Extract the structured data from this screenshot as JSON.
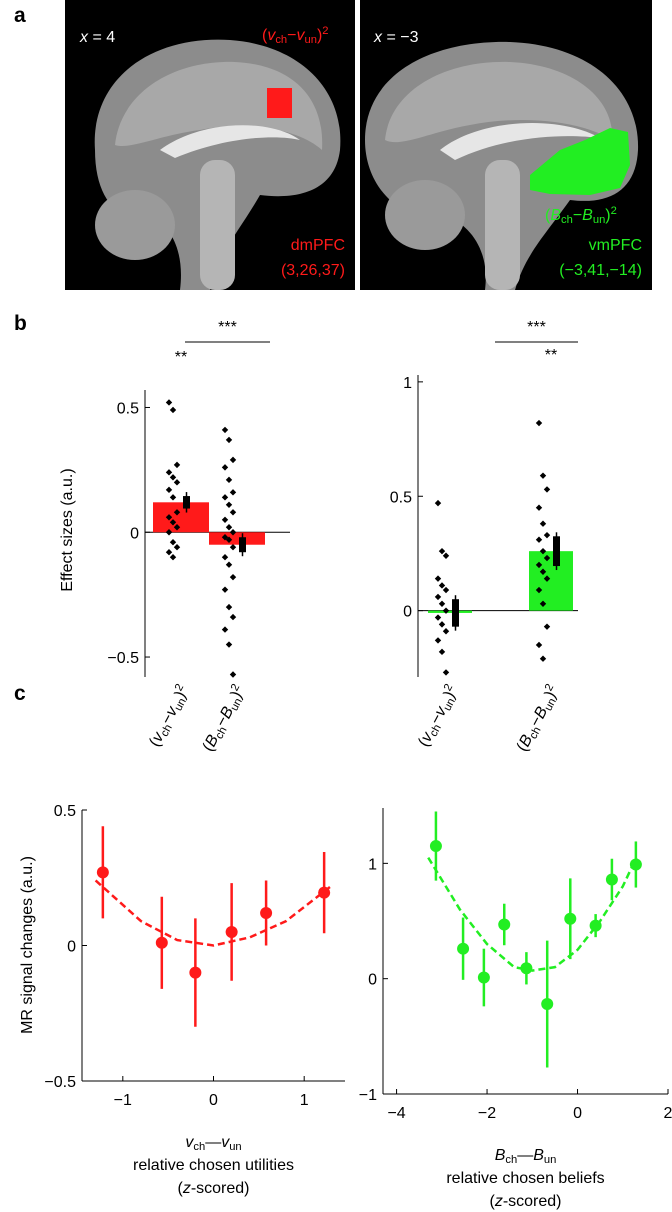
{
  "panel_labels": [
    "a",
    "b",
    "c"
  ],
  "brain_panels": [
    {
      "slice": [
        [
          "x",
          "italic"
        ],
        [
          " = 4",
          "normal"
        ]
      ],
      "contrast": [
        [
          "(",
          "normal"
        ],
        [
          "v",
          "italic"
        ],
        [
          "ch",
          "sub"
        ],
        [
          "−",
          "normal"
        ],
        [
          "v",
          "italic"
        ],
        [
          "un",
          "sub"
        ],
        [
          ")",
          "normal"
        ],
        [
          "2",
          "sup"
        ]
      ],
      "color": "#ff1a1a",
      "region": "dmPFC",
      "coordinates": "(3,26,37)"
    },
    {
      "slice": [
        [
          "x",
          "italic"
        ],
        [
          " = −3",
          "normal"
        ]
      ],
      "contrast": [
        [
          "(",
          "normal"
        ],
        [
          "B",
          "italic"
        ],
        [
          "ch",
          "sub"
        ],
        [
          "−",
          "normal"
        ],
        [
          "B",
          "italic"
        ],
        [
          "un",
          "sub"
        ],
        [
          ")",
          "normal"
        ],
        [
          "2",
          "sup"
        ]
      ],
      "color": "#22ee22",
      "region": "vmPFC",
      "coordinates": "(−3,41,−14)"
    }
  ],
  "chart_data": [
    {
      "type": "bar",
      "y_label": "Effect sizes (a.u.)",
      "categories": [
        [
          [
            "(",
            "normal"
          ],
          [
            "v",
            "italic"
          ],
          [
            "ch",
            "sub"
          ],
          [
            "−",
            "normal"
          ],
          [
            "v",
            "italic"
          ],
          [
            "un",
            "sub"
          ],
          [
            ")",
            "normal"
          ],
          [
            "2",
            "sup"
          ]
        ],
        [
          [
            "(",
            "normal"
          ],
          [
            "B",
            "italic"
          ],
          [
            "ch",
            "sub"
          ],
          [
            "−",
            "normal"
          ],
          [
            "B",
            "italic"
          ],
          [
            "un",
            "sub"
          ],
          [
            ")",
            "normal"
          ],
          [
            "2",
            "sup"
          ]
        ]
      ],
      "values": [
        0.12,
        -0.05
      ],
      "errors": [
        0.025,
        0.03
      ],
      "color": "#ff1a1a",
      "error_color": "#000000",
      "points": [
        [
          0.52,
          0.49,
          0.27,
          0.24,
          0.22,
          0.2,
          0.17,
          0.14,
          0.08,
          0.06,
          0.04,
          0.02,
          0,
          -0.04,
          -0.06,
          -0.08,
          -0.1
        ],
        [
          0.41,
          0.37,
          0.29,
          0.26,
          0.21,
          0.16,
          0.14,
          0.11,
          0.08,
          0.05,
          0.02,
          0,
          -0.02,
          -0.03,
          -0.06,
          -0.1,
          -0.13,
          -0.18,
          -0.23,
          -0.3,
          -0.34,
          -0.39,
          -0.45,
          -0.57
        ]
      ],
      "point_color": "#000000",
      "significance": [
        "**",
        null
      ],
      "comparison": "***",
      "ylim": [
        -0.58,
        0.57
      ],
      "yticks": [
        0.5,
        0,
        {
          "value": -0.5,
          "label": "−0.5"
        }
      ]
    },
    {
      "type": "bar",
      "categories": [
        [
          [
            "(",
            "normal"
          ],
          [
            "v",
            "italic"
          ],
          [
            "ch",
            "sub"
          ],
          [
            "−",
            "normal"
          ],
          [
            "v",
            "italic"
          ],
          [
            "un",
            "sub"
          ],
          [
            ")",
            "normal"
          ],
          [
            "2",
            "sup"
          ]
        ],
        [
          [
            "(",
            "normal"
          ],
          [
            "B",
            "italic"
          ],
          [
            "ch",
            "sub"
          ],
          [
            "−",
            "normal"
          ],
          [
            "B",
            "italic"
          ],
          [
            "un",
            "sub"
          ],
          [
            ")",
            "normal"
          ],
          [
            "2",
            "sup"
          ]
        ]
      ],
      "values": [
        -0.01,
        0.26
      ],
      "errors": [
        0.06,
        0.065
      ],
      "color": "#22ee22",
      "error_color": "#000000",
      "points": [
        [
          0.47,
          0.26,
          0.24,
          0.14,
          0.11,
          0.09,
          0.06,
          0.03,
          0,
          -0.03,
          -0.06,
          -0.09,
          -0.13,
          -0.18,
          -0.27
        ],
        [
          0.82,
          0.59,
          0.53,
          0.45,
          0.38,
          0.33,
          0.31,
          0.26,
          0.23,
          0.2,
          0.17,
          0.14,
          0.09,
          0.03,
          -0.07,
          -0.15,
          -0.21
        ]
      ],
      "point_color": "#000000",
      "significance": [
        null,
        "**"
      ],
      "comparison": "***",
      "ylim": [
        -0.29,
        1.03
      ],
      "yticks": [
        1,
        0.5,
        0
      ]
    },
    {
      "type": "line",
      "y_label": "MR signal changes (a.u.)",
      "x": [
        -1.22,
        -0.57,
        -0.2,
        0.2,
        0.58,
        1.22
      ],
      "values": [
        0.27,
        0.01,
        -0.1,
        0.05,
        0.12,
        0.195
      ],
      "errors": [
        0.17,
        0.17,
        0.2,
        0.18,
        0.12,
        0.15
      ],
      "color": "#ff1a1a",
      "fit": {
        "x": [
          -1.3,
          -0.8,
          -0.4,
          0,
          0.4,
          0.8,
          1.3
        ],
        "values": [
          0.24,
          0.09,
          0.02,
          0.0,
          0.03,
          0.09,
          0.22
        ]
      },
      "x_label": [
        [
          [
            "v",
            "italic"
          ],
          [
            "ch",
            "sub"
          ],
          [
            "—",
            "normal"
          ],
          [
            "v",
            "italic"
          ],
          [
            "un",
            "sub"
          ]
        ],
        [
          [
            "relative chosen utilities",
            "normal"
          ]
        ],
        [
          [
            "(",
            "normal"
          ],
          [
            "z",
            "italic"
          ],
          [
            "-scored)",
            "normal"
          ]
        ]
      ],
      "xlim": [
        -1.45,
        1.45
      ],
      "xticks": [
        {
          "value": -1,
          "label": "−1"
        },
        0,
        1
      ],
      "ylim": [
        -0.5,
        0.5
      ],
      "yticks": [
        0.5,
        0,
        {
          "value": -0.5,
          "label": "−0.5"
        }
      ]
    },
    {
      "type": "line",
      "x": [
        -3.13,
        -2.53,
        -2.07,
        -1.62,
        -1.13,
        -0.67,
        -0.16,
        0.4,
        0.76,
        1.29
      ],
      "values": [
        1.15,
        0.26,
        0.01,
        0.47,
        0.09,
        -0.22,
        0.52,
        0.46,
        0.86,
        0.99
      ],
      "errors": [
        0.3,
        0.27,
        0.25,
        0.18,
        0.14,
        0.55,
        0.35,
        0.1,
        0.18,
        0.2
      ],
      "color": "#22ee22",
      "fit": {
        "x": [
          -3.3,
          -2.6,
          -2,
          -1.4,
          -1,
          -0.5,
          0,
          0.5,
          1,
          1.3
        ],
        "values": [
          1.05,
          0.6,
          0.3,
          0.1,
          0.07,
          0.1,
          0.25,
          0.5,
          0.8,
          1.05
        ]
      },
      "x_label": [
        [
          [
            "B",
            "italic"
          ],
          [
            "ch",
            "sub"
          ],
          [
            "—",
            "normal"
          ],
          [
            "B",
            "italic"
          ],
          [
            "un",
            "sub"
          ]
        ],
        [
          [
            "relative chosen beliefs",
            "normal"
          ]
        ],
        [
          [
            "(",
            "normal"
          ],
          [
            "z",
            "italic"
          ],
          [
            "-scored)",
            "normal"
          ]
        ]
      ],
      "xlim": [
        -4.3,
        2
      ],
      "xticks": [
        {
          "value": -4,
          "label": "−4"
        },
        {
          "value": -2,
          "label": "−2"
        },
        0,
        2
      ],
      "ylim": [
        -1,
        1.48
      ],
      "yticks": [
        1,
        0,
        {
          "value": -1,
          "label": "−1"
        }
      ]
    }
  ]
}
